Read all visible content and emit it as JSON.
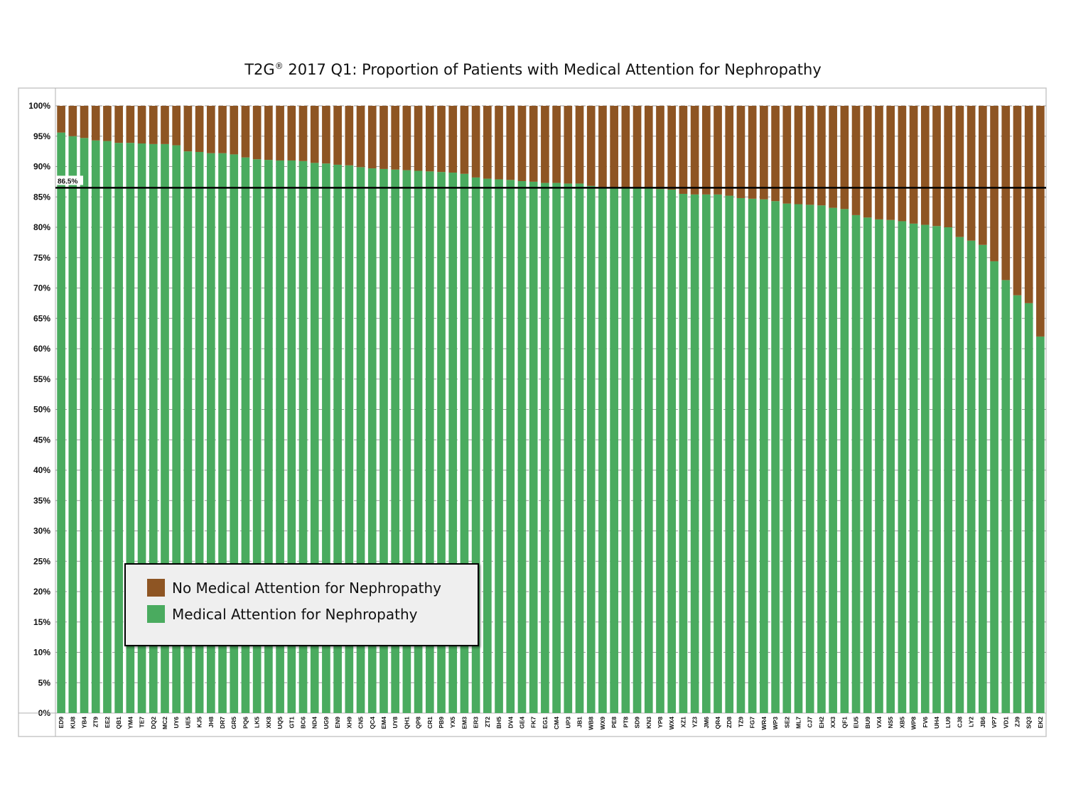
{
  "chart_data": {
    "type": "bar",
    "stacked": true,
    "title_main": "T2G",
    "title_reg": "®",
    "title_rest": " 2017 Q1: Proportion of Patients with Medical Attention for Nephropathy",
    "categories": [
      "ED9",
      "KU8",
      "YB4",
      "ZT9",
      "EE2",
      "QB1",
      "YM4",
      "TE7",
      "DQ2",
      "MC2",
      "UY6",
      "UE5",
      "KJ5",
      "JH8",
      "DR7",
      "GR5",
      "PQ6",
      "LK5",
      "XK8",
      "UQ5",
      "GT1",
      "BC6",
      "ND4",
      "UG9",
      "EN9",
      "XH9",
      "CN5",
      "QC4",
      "EM4",
      "UY8",
      "QH1",
      "QP8",
      "CR1",
      "PB9",
      "YX5",
      "EM3",
      "ER3",
      "ZT2",
      "BH5",
      "DV4",
      "GE4",
      "FK7",
      "EG1",
      "CM4",
      "UP3",
      "JB1",
      "WB8",
      "WX9",
      "PE8",
      "PT8",
      "SD9",
      "KN3",
      "YP8",
      "WX4",
      "XZ1",
      "YZ3",
      "JM6",
      "QR4",
      "ZD8",
      "TZ9",
      "FG7",
      "WR4",
      "WP3",
      "SE2",
      "ML7",
      "CJ7",
      "EH2",
      "XX3",
      "QF1",
      "EU5",
      "BU9",
      "VX4",
      "NS5",
      "XB5",
      "WP8",
      "FV6",
      "UH4",
      "LU9",
      "CJ8",
      "LY2",
      "JB6",
      "VP7",
      "VD1",
      "ZJ9",
      "SQ3",
      "EK2"
    ],
    "series": [
      {
        "name": "Medical Attention for Nephropathy",
        "color": "#4aab5f",
        "values": [
          95.6,
          95.0,
          94.7,
          94.3,
          94.2,
          93.9,
          93.9,
          93.8,
          93.7,
          93.7,
          93.5,
          92.5,
          92.4,
          92.2,
          92.2,
          92.0,
          91.5,
          91.2,
          91.1,
          91.0,
          91.0,
          90.9,
          90.6,
          90.5,
          90.3,
          90.2,
          89.9,
          89.7,
          89.6,
          89.5,
          89.4,
          89.3,
          89.2,
          89.1,
          89.0,
          88.8,
          88.2,
          88.0,
          87.9,
          87.8,
          87.6,
          87.5,
          87.3,
          87.3,
          87.2,
          87.2,
          86.8,
          86.6,
          86.5,
          86.4,
          86.4,
          86.4,
          86.3,
          86.2,
          85.5,
          85.4,
          85.4,
          85.4,
          85.2,
          84.8,
          84.7,
          84.6,
          84.3,
          83.9,
          83.8,
          83.7,
          83.6,
          83.2,
          83.0,
          82.0,
          81.6,
          81.3,
          81.2,
          81.0,
          80.6,
          80.4,
          80.2,
          80.0,
          78.4,
          77.8,
          77.1,
          74.4,
          71.3,
          68.8,
          67.5,
          62.0
        ]
      },
      {
        "name": "No Medical Attention for Nephropathy",
        "color": "#8e5523",
        "values": [
          4.4,
          5.0,
          5.3,
          5.7,
          5.8,
          6.1,
          6.1,
          6.2,
          6.3,
          6.3,
          6.5,
          7.5,
          7.6,
          7.8,
          7.8,
          8.0,
          8.5,
          8.8,
          8.9,
          9.0,
          9.0,
          9.1,
          9.4,
          9.5,
          9.7,
          9.8,
          10.1,
          10.3,
          10.4,
          10.5,
          10.6,
          10.7,
          10.8,
          10.9,
          11.0,
          11.2,
          11.8,
          12.0,
          12.1,
          12.2,
          12.4,
          12.5,
          12.7,
          12.7,
          12.8,
          12.8,
          13.2,
          13.4,
          13.5,
          13.6,
          13.6,
          13.6,
          13.7,
          13.8,
          14.5,
          14.6,
          14.6,
          14.6,
          14.8,
          15.2,
          15.3,
          15.4,
          15.7,
          16.1,
          16.2,
          16.3,
          16.4,
          16.8,
          17.0,
          18.0,
          18.4,
          18.7,
          18.8,
          19.0,
          19.4,
          19.6,
          19.8,
          20.0,
          21.6,
          22.2,
          22.9,
          25.6,
          28.7,
          31.2,
          32.5,
          38.0
        ]
      }
    ],
    "y_ticks": [
      "0%",
      "5%",
      "10%",
      "15%",
      "20%",
      "25%",
      "30%",
      "35%",
      "40%",
      "45%",
      "50%",
      "55%",
      "60%",
      "65%",
      "70%",
      "75%",
      "80%",
      "85%",
      "90%",
      "95%",
      "100%"
    ],
    "ylim": [
      0,
      100
    ],
    "reference_line": {
      "value": 86.5,
      "label": "86.5%"
    },
    "grid": true,
    "legend": {
      "position": "lower-left",
      "items": [
        {
          "label": "No Medical Attention for Nephropathy",
          "color": "#8e5523"
        },
        {
          "label": "Medical Attention for Nephropathy",
          "color": "#4aab5f"
        }
      ]
    }
  }
}
